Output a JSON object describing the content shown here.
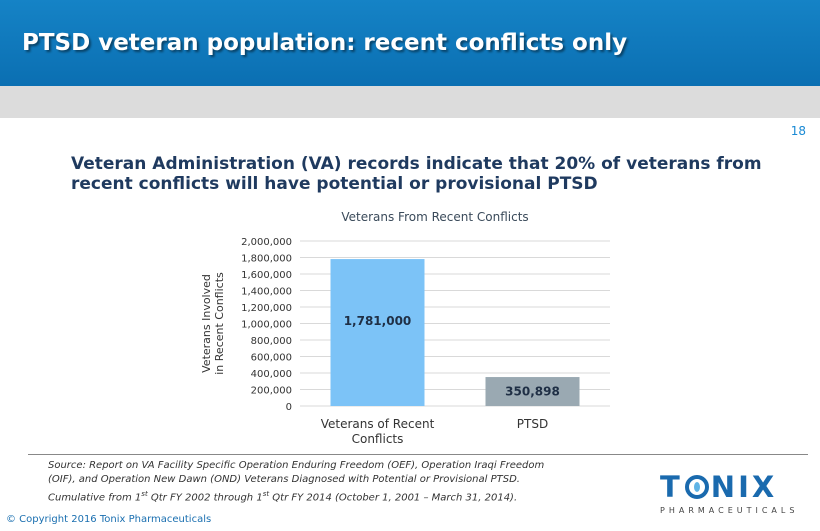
{
  "header": {
    "title": "PTSD veteran population: recent conflicts only"
  },
  "slide_number": "18",
  "intro": "Veteran Administration (VA) records indicate that 20% of veterans from recent conflicts will have potential or provisional PTSD",
  "source": {
    "line1": "Source: Report on VA Facility Specific Operation Enduring Freedom (OEF), Operation Iraqi Freedom",
    "line2": "(OIF), and Operation New Dawn (OND) Veterans Diagnosed with Potential or Provisional PTSD.",
    "line3_a": "Cumulative from 1",
    "line3_sup1": "st",
    "line3_b": " Qtr FY 2002 through 1",
    "line3_sup2": "st",
    "line3_c": " Qtr FY 2014 (October 1, 2001 – March 31, 2014)."
  },
  "copyright": "© Copyright 2016 Tonix Pharmaceuticals",
  "logo": {
    "word_a": "T",
    "word_b": "NIX",
    "sub": "PHARMACEUTICALS"
  },
  "colors": {
    "bar1": "#7cc3f7",
    "bar2": "#9aa9b2",
    "header": "#0b6fb2"
  },
  "chart_data": {
    "type": "bar",
    "title": "Veterans From Recent Conflicts",
    "ylabel": "Veterans Involved in Recent Conflicts",
    "ylabel_lines": [
      "Veterans Involved",
      "in Recent Conflicts"
    ],
    "categories": [
      "Veterans of Recent Conflicts",
      "PTSD"
    ],
    "category_lines": [
      [
        "Veterans of Recent",
        "Conflicts"
      ],
      [
        "PTSD"
      ]
    ],
    "values": [
      1781000,
      350898
    ],
    "data_labels": [
      "1,781,000",
      "350,898"
    ],
    "ylim": [
      0,
      2000000
    ],
    "yticks": [
      "0",
      "200,000",
      "400,000",
      "600,000",
      "800,000",
      "1,000,000",
      "1,200,000",
      "1,400,000",
      "1,600,000",
      "1,800,000",
      "2,000,000"
    ],
    "grid": true,
    "legend": "none"
  }
}
